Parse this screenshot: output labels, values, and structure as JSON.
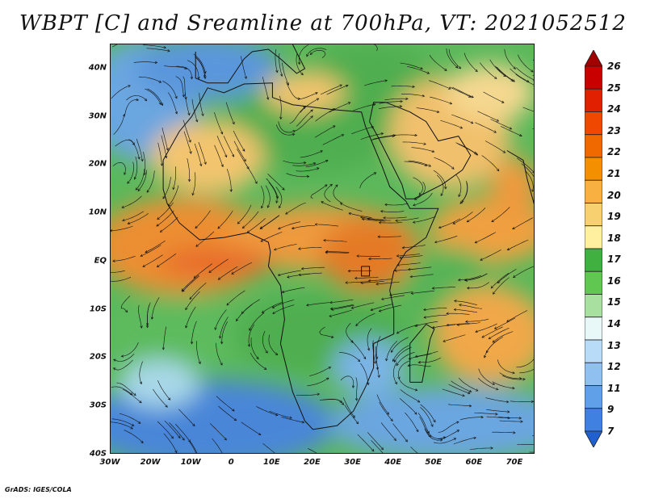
{
  "title": "WBPT [C] and Sreamline at 700hPa, VT: 2021052512",
  "footer": "GrADS: IGES/COLA",
  "map": {
    "lat_labels": [
      "40N",
      "30N",
      "20N",
      "10N",
      "EQ",
      "10S",
      "20S",
      "30S",
      "40S"
    ],
    "lat_values": [
      40,
      30,
      20,
      10,
      0,
      -10,
      -20,
      -30,
      -40
    ],
    "lon_labels": [
      "30W",
      "20W",
      "10W",
      "0",
      "10E",
      "20E",
      "30E",
      "40E",
      "50E",
      "60E",
      "70E"
    ],
    "lon_values": [
      -30,
      -20,
      -10,
      0,
      10,
      20,
      30,
      40,
      50,
      60,
      70
    ],
    "lon_range": [
      -30,
      75
    ],
    "lat_range": [
      -40,
      45
    ]
  },
  "colorbar": {
    "labels": [
      "26",
      "25",
      "24",
      "23",
      "22",
      "21",
      "20",
      "19",
      "18",
      "17",
      "16",
      "15",
      "14",
      "13",
      "12",
      "11",
      "9",
      "7"
    ],
    "colors": [
      "#a00000",
      "#c80000",
      "#e02000",
      "#f04800",
      "#f06800",
      "#f49000",
      "#f8b040",
      "#f8d070",
      "#fff0a0",
      "#40b040",
      "#60c850",
      "#a8e0a0",
      "#e8f8f8",
      "#b8dcf8",
      "#90c0f0",
      "#60a0e8",
      "#4080e0",
      "#2060d0"
    ]
  }
}
